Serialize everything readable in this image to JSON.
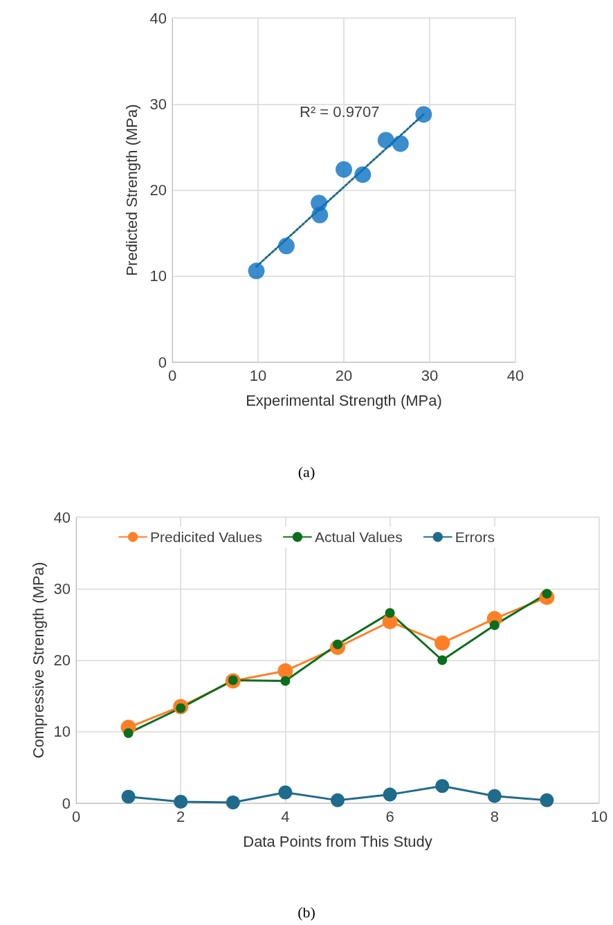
{
  "chart_data": [
    {
      "type": "scatter",
      "xlabel": "Experimental Strength (MPa)",
      "ylabel": "Predicted Strength (MPa)",
      "xlim": [
        0,
        40
      ],
      "xticks": [
        0,
        10,
        20,
        30,
        40
      ],
      "ylim": [
        0,
        40
      ],
      "yticks": [
        0,
        10,
        20,
        30,
        40
      ],
      "grid": true,
      "marker": "circle",
      "legend": false,
      "series": [
        {
          "color": "#0a70c0",
          "x": [
            9.8,
            13.3,
            17.2,
            17.1,
            22.2,
            26.6,
            20,
            24.9,
            29.3
          ],
          "values": [
            10.6,
            13.5,
            17.1,
            18.5,
            21.8,
            25.4,
            22.4,
            25.8,
            28.8
          ]
        },
        {
          "type": "line",
          "color": "#1f6b8c",
          "line_style": "dotted",
          "marker": "none",
          "x": [
            9.8,
            29.3
          ],
          "values": [
            11.1,
            28.8
          ]
        }
      ],
      "annotations": [
        "R² = 0.9707",
        "(a)"
      ]
    },
    {
      "type": "line",
      "xlabel": "Data Points from This Study",
      "ylabel": "Compressive Strength (MPa)",
      "xlim": [
        0,
        10
      ],
      "xticks": [
        0,
        2,
        4,
        6,
        8,
        10
      ],
      "ylim": [
        0,
        40
      ],
      "yticks": [
        0,
        10,
        20,
        30,
        40
      ],
      "grid": true,
      "marker": "circle",
      "legend": "top",
      "x": [
        1,
        2,
        3,
        4,
        5,
        6,
        7,
        8,
        9
      ],
      "series": [
        {
          "name": "Predicited Values",
          "color": "#ff7f27",
          "values": [
            10.6,
            13.5,
            17.1,
            18.5,
            21.8,
            25.4,
            22.4,
            25.8,
            28.8
          ]
        },
        {
          "name": "Actual Values",
          "color": "#0b6e1e",
          "values": [
            9.8,
            13.3,
            17.2,
            17.1,
            22.2,
            26.6,
            20,
            24.9,
            29.3
          ]
        },
        {
          "name": "Errors",
          "color": "#1f6b8c",
          "values": [
            0.9,
            0.2,
            0.1,
            1.5,
            0.4,
            1.2,
            2.4,
            1.0,
            0.4
          ]
        }
      ],
      "annotations": [
        "(b)"
      ]
    }
  ]
}
